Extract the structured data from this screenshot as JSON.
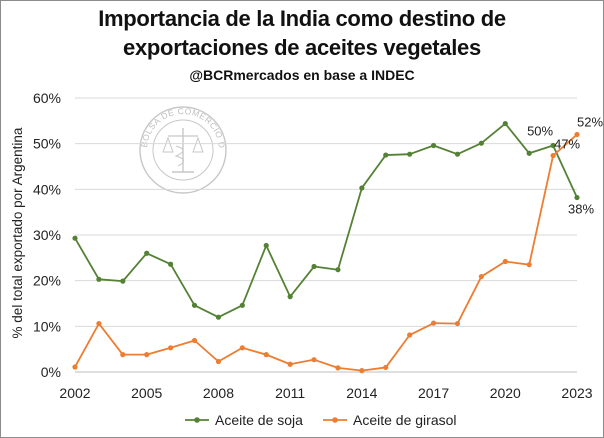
{
  "header": {
    "title_line1": "Importancia de la India como destino de",
    "title_line2": "exportaciones de aceites vegetales",
    "subtitle": "@BCRmercados en base a INDEC"
  },
  "watermark": {
    "text": "BOLSA DE COMERCIO DE ROSARIO"
  },
  "chart_data": {
    "type": "line",
    "title": "Importancia de la India como destino de exportaciones de aceites vegetales",
    "subtitle": "@BCRmercados en base a INDEC",
    "ylabel": "% del total exportado por Argentina",
    "xlabel": "",
    "x": [
      2002,
      2003,
      2004,
      2005,
      2006,
      2007,
      2008,
      2009,
      2010,
      2011,
      2012,
      2013,
      2014,
      2015,
      2016,
      2017,
      2018,
      2019,
      2020,
      2021,
      2022,
      2023
    ],
    "xlim": [
      2002,
      2023
    ],
    "xticks": [
      2002,
      2005,
      2008,
      2011,
      2014,
      2017,
      2020,
      2023
    ],
    "ylim": [
      0,
      60
    ],
    "yticks": [
      0,
      10,
      20,
      30,
      40,
      50,
      60
    ],
    "ytick_labels": [
      "0%",
      "10%",
      "20%",
      "30%",
      "40%",
      "50%",
      "60%"
    ],
    "grid": "horizontal",
    "legend_position": "bottom",
    "series": [
      {
        "name": "Aceite de soja",
        "color": "#548235",
        "values": [
          29.3,
          20.3,
          19.9,
          26.0,
          23.6,
          14.6,
          12.0,
          14.6,
          27.7,
          16.5,
          23.1,
          22.4,
          40.3,
          47.5,
          47.7,
          49.6,
          47.7,
          50.1,
          54.4,
          47.9,
          49.6,
          38.2
        ],
        "labels": [
          {
            "index": 20,
            "text": "50%"
          },
          {
            "index": 21,
            "text": "38%"
          }
        ]
      },
      {
        "name": "Aceite de girasol",
        "color": "#ED7D31",
        "values": [
          1.1,
          10.6,
          3.8,
          3.8,
          5.3,
          6.9,
          2.3,
          5.3,
          3.8,
          1.7,
          2.7,
          0.9,
          0.3,
          1.0,
          8.1,
          10.7,
          10.6,
          20.9,
          24.2,
          23.5,
          47.4,
          52.0
        ],
        "labels": [
          {
            "index": 20,
            "text": "47%"
          },
          {
            "index": 21,
            "text": "52%"
          }
        ]
      }
    ]
  }
}
